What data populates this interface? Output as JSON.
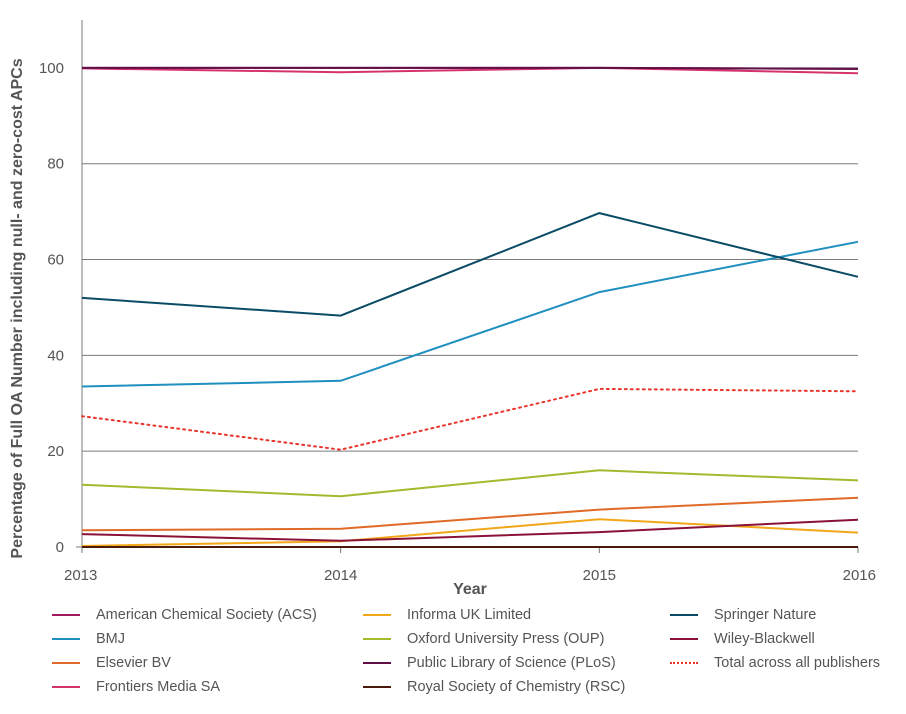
{
  "chart_data": {
    "type": "line",
    "title": "",
    "xlabel": "Year",
    "ylabel": "Percentage of Full OA Number including null- and zero-cost APCs",
    "x": [
      2013,
      2014,
      2015,
      2016
    ],
    "xticks": [
      "2013",
      "2014",
      "2015",
      "2016"
    ],
    "yticks": [
      "0",
      "20",
      "40",
      "60",
      "80",
      "100"
    ],
    "ylim": [
      0,
      110
    ],
    "grid": "horizontal",
    "legend_position": "bottom",
    "series": [
      {
        "name": "American Chemical Society (ACS)",
        "color": "#a0195f",
        "style": "solid",
        "values": [
          100,
          100,
          100,
          99.8
        ]
      },
      {
        "name": "BMJ",
        "color": "#1f8fc0",
        "style": "solid",
        "values": [
          33.5,
          34.7,
          53.2,
          63.7
        ]
      },
      {
        "name": "Elsevier BV",
        "color": "#e06a28",
        "style": "solid",
        "values": [
          3.5,
          3.8,
          7.8,
          10.3
        ]
      },
      {
        "name": "Frontiers Media SA",
        "color": "#d6336c",
        "style": "solid",
        "values": [
          99.9,
          99.1,
          100,
          98.9
        ]
      },
      {
        "name": "Informa UK Limited",
        "color": "#f2a71b",
        "style": "solid",
        "values": [
          0.2,
          1.2,
          5.8,
          3
        ]
      },
      {
        "name": "Oxford University Press (OUP)",
        "color": "#a3b92e",
        "style": "solid",
        "values": [
          13,
          10.6,
          16,
          13.9
        ]
      },
      {
        "name": "Public Library of Science (PLoS)",
        "color": "#5e1047",
        "style": "solid",
        "values": [
          100,
          100,
          100,
          99.8
        ]
      },
      {
        "name": "Royal Society of Chemistry (RSC)",
        "color": "#4a1a0c",
        "style": "solid",
        "values": [
          0,
          0,
          0,
          0
        ]
      },
      {
        "name": "Springer Nature",
        "color": "#0a4b66",
        "style": "solid",
        "values": [
          52,
          48.3,
          69.7,
          56.4
        ]
      },
      {
        "name": "Wiley-Blackwell",
        "color": "#8a1238",
        "style": "solid",
        "values": [
          2.7,
          1.3,
          3.1,
          5.7
        ]
      },
      {
        "name": "Total across all publishers",
        "color": "#e8352d",
        "style": "dotted",
        "values": [
          27.3,
          20.3,
          33,
          32.5
        ]
      }
    ]
  }
}
